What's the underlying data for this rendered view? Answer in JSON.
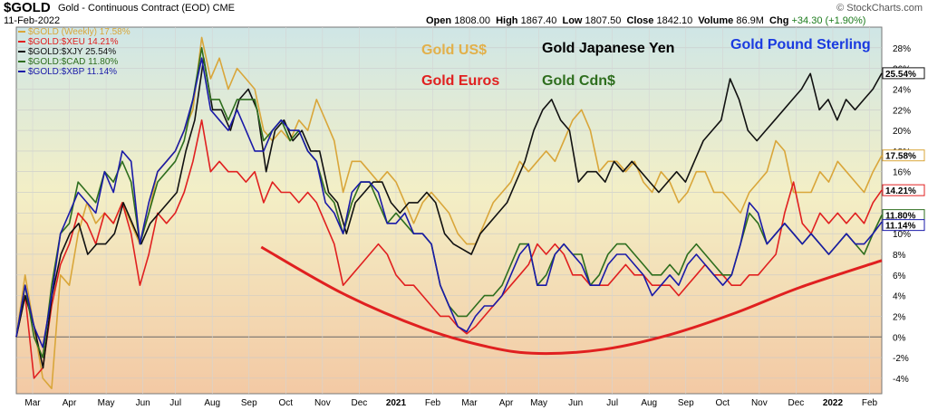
{
  "header": {
    "symbol": "$GOLD",
    "description": "Gold - Continuous Contract (EOD)",
    "exchange": "CME",
    "date": "11-Feb-2022",
    "brand": "© StockCharts.com",
    "open_label": "Open",
    "open": "1808.00",
    "high_label": "High",
    "high": "1867.40",
    "low_label": "Low",
    "low": "1807.50",
    "close_label": "Close",
    "close": "1842.10",
    "volume_label": "Volume",
    "volume": "86.9M",
    "chg_label": "Chg",
    "chg": "+34.30 (+1.90%)"
  },
  "chart_data": {
    "type": "line",
    "title": "",
    "xlabel": "",
    "ylabel": "",
    "ylim": [
      -5.5,
      30
    ],
    "yticks": [
      -4,
      -2,
      0,
      2,
      4,
      6,
      8,
      10,
      12,
      14,
      16,
      18,
      20,
      22,
      24,
      26,
      28
    ],
    "ytick_labels": [
      "-4%",
      "-2%",
      "0%",
      "2%",
      "4%",
      "6%",
      "8%",
      "10%",
      "12%",
      "14%",
      "16%",
      "18%",
      "20%",
      "22%",
      "24%",
      "26%",
      "28%"
    ],
    "x_tick_labels": [
      "Mar",
      "Apr",
      "May",
      "Jun",
      "Jul",
      "Aug",
      "Sep",
      "Oct",
      "Nov",
      "Dec",
      "2021",
      "Feb",
      "Mar",
      "Apr",
      "May",
      "Jun",
      "Jul",
      "Aug",
      "Sep",
      "Oct",
      "Nov",
      "Dec",
      "2022",
      "Feb"
    ],
    "x_tick_positions": [
      2,
      6.5,
      11,
      15.5,
      19.5,
      24,
      28.5,
      33,
      37.5,
      42,
      46.5,
      51,
      55.5,
      60,
      64,
      68.5,
      73,
      77.5,
      82,
      86.5,
      91,
      95.5,
      100,
      104.5
    ],
    "x_range": [
      0,
      106
    ],
    "zero_line": 0,
    "legend": [
      {
        "label": "$GOLD (Weekly) 17.58%",
        "color": "#d9a63a"
      },
      {
        "label": "$GOLD:$XEU 14.21%",
        "color": "#e02020"
      },
      {
        "label": "$GOLD:$XJY 25.54%",
        "color": "#111111"
      },
      {
        "label": "$GOLD:$CAD 11.80%",
        "color": "#2e6e1e"
      },
      {
        "label": "$GOLD:$XBP 11.14%",
        "color": "#1a1aa8"
      }
    ],
    "annotations": [
      {
        "text": "Gold US$",
        "color": "#e2b04a"
      },
      {
        "text": "Gold Japanese Yen",
        "color": "#000000"
      },
      {
        "text": "Gold Pound Sterling",
        "color": "#1a3ae0"
      },
      {
        "text": "Gold Euros",
        "color": "#e02020"
      },
      {
        "text": "Gold Cdn$",
        "color": "#2e6e1e"
      }
    ],
    "last_value_tags": [
      {
        "text": "25.54%",
        "value": 25.54,
        "color": "#111111"
      },
      {
        "text": "17.58%",
        "value": 17.58,
        "color": "#d9a63a"
      },
      {
        "text": "14.21%",
        "value": 14.21,
        "color": "#e02020"
      },
      {
        "text": "11.80%",
        "value": 11.8,
        "color": "#2e6e1e"
      },
      {
        "text": "11.14%",
        "value": 11.14,
        "color": "#1a1aa8"
      }
    ],
    "trend_arc": {
      "color": "#e02020",
      "points": [
        [
          30,
          8.7
        ],
        [
          40,
          4.2
        ],
        [
          50,
          0.8
        ],
        [
          58,
          -1.0
        ],
        [
          64,
          -1.6
        ],
        [
          72,
          -1.2
        ],
        [
          80,
          0.2
        ],
        [
          88,
          2.3
        ],
        [
          96,
          4.8
        ],
        [
          106,
          7.4
        ]
      ]
    },
    "series": [
      {
        "name": "$GOLD (Weekly)",
        "color": "#d9a63a",
        "values": [
          0,
          6,
          1,
          -4,
          -5,
          6,
          5,
          10,
          13,
          11,
          12,
          11,
          13,
          11,
          9,
          12,
          16,
          17,
          18,
          20,
          22,
          29,
          25,
          27,
          24,
          26,
          25,
          24,
          20,
          19,
          20,
          19,
          21,
          20,
          23,
          21,
          19,
          14,
          17,
          17,
          16,
          15,
          16,
          15,
          13,
          11,
          13,
          14,
          13,
          12,
          10,
          9,
          9,
          11,
          13,
          14,
          15,
          17,
          16,
          17,
          18,
          17,
          19,
          21,
          22,
          20,
          16,
          17,
          17,
          16,
          17,
          15,
          14,
          16,
          15,
          13,
          14,
          16,
          16,
          14,
          14,
          13,
          12,
          14,
          15,
          16,
          19,
          18,
          14,
          14,
          14,
          16,
          15,
          17,
          16,
          15,
          14,
          16,
          17.58
        ]
      },
      {
        "name": "$GOLD:$XEU",
        "color": "#e02020",
        "values": [
          0,
          4,
          -4,
          -3,
          3,
          7,
          9,
          12,
          11,
          9,
          12,
          11,
          13,
          10,
          5,
          8,
          12,
          11,
          12,
          14,
          17,
          21,
          16,
          17,
          16,
          16,
          15,
          16,
          13,
          15,
          14,
          14,
          13,
          14,
          13,
          11,
          9,
          5,
          6,
          7,
          8,
          9,
          8,
          6,
          5,
          5,
          4,
          3,
          2,
          2,
          1,
          0.3,
          1,
          2,
          3,
          4,
          5,
          6,
          7,
          9,
          8,
          9,
          8,
          6,
          6,
          5,
          5,
          5,
          6,
          7,
          6,
          6,
          5,
          5,
          5,
          4,
          5,
          6,
          7,
          6,
          6,
          5,
          5,
          6,
          6,
          7,
          8,
          12,
          15,
          11,
          10,
          12,
          11,
          12,
          11,
          12,
          11,
          13,
          14.21
        ]
      },
      {
        "name": "$GOLD:$XJY",
        "color": "#111111",
        "values": [
          0,
          4,
          1,
          -3,
          4,
          8,
          10,
          11,
          8,
          9,
          9,
          10,
          13,
          11,
          9,
          11,
          12,
          13,
          14,
          18,
          21,
          27,
          22,
          22,
          20,
          23,
          24,
          22,
          16,
          20,
          21,
          19,
          20,
          18,
          18,
          14,
          13,
          10,
          13,
          14,
          15,
          15,
          13,
          12,
          13,
          13,
          14,
          13,
          10,
          9,
          8.5,
          8,
          10,
          11,
          12,
          13,
          15,
          17,
          20,
          22,
          23,
          21,
          20,
          15,
          16,
          16,
          15,
          17,
          16,
          17,
          16,
          15,
          14,
          15,
          16,
          15,
          17,
          19,
          20,
          21,
          25,
          23,
          20,
          19,
          20,
          21,
          22,
          23,
          24,
          25.5,
          22,
          23,
          21,
          23,
          22,
          23,
          24,
          25.54
        ]
      },
      {
        "name": "$GOLD:$CAD",
        "color": "#2e6e1e",
        "values": [
          0,
          5,
          0,
          -2,
          5,
          10,
          11,
          15,
          14,
          13,
          16,
          15,
          17,
          15,
          9,
          12,
          15,
          16,
          17,
          19,
          23,
          28,
          23,
          23,
          21,
          23,
          23,
          23,
          19,
          20,
          21,
          19,
          20,
          18,
          17,
          14,
          13,
          10,
          13,
          15,
          15,
          13,
          11,
          12,
          11,
          10,
          10,
          9,
          5,
          3,
          2,
          2,
          3,
          4,
          4,
          5,
          7,
          9,
          9,
          5,
          6,
          8,
          9,
          8,
          8,
          5,
          6,
          8,
          9,
          9,
          8,
          7,
          6,
          6,
          7,
          6,
          8,
          9,
          8,
          7,
          6,
          6,
          9,
          12,
          11,
          9,
          10,
          11,
          10,
          9,
          10,
          9,
          8,
          9,
          10,
          9,
          8,
          10,
          11.8
        ]
      },
      {
        "name": "$GOLD:$XBP",
        "color": "#1a1aa8",
        "values": [
          0,
          5,
          1,
          -1,
          4,
          10,
          12,
          14,
          13,
          12,
          16,
          14,
          18,
          17,
          9,
          13,
          16,
          17,
          18,
          20,
          23,
          27,
          22,
          21,
          20,
          22,
          20,
          18,
          18,
          20,
          21,
          20,
          20,
          18,
          17,
          13,
          12,
          10,
          14,
          15,
          15,
          14,
          11,
          11,
          12,
          10,
          10,
          9,
          5,
          3,
          1,
          0.5,
          2,
          3,
          3,
          4,
          6,
          8,
          9,
          5,
          5,
          8,
          9,
          8,
          7,
          5,
          5,
          7,
          8,
          8,
          7,
          6,
          4,
          5,
          6,
          5,
          7,
          8,
          7,
          6,
          5,
          6,
          9,
          13,
          12,
          9,
          10,
          11,
          10,
          9,
          10,
          9,
          8,
          9,
          10,
          9,
          9,
          10,
          11.14
        ]
      }
    ]
  }
}
